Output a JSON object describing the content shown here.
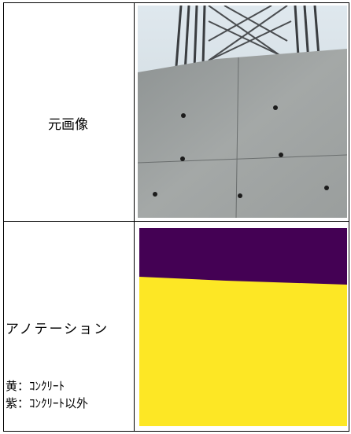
{
  "table": {
    "rows": [
      {
        "label": "元画像"
      },
      {
        "label": "アノテーション",
        "legend": [
          "黄：ｺﾝｸﾘｰﾄ",
          "紫：ｺﾝｸﾘｰﾄ以外"
        ]
      }
    ]
  }
}
